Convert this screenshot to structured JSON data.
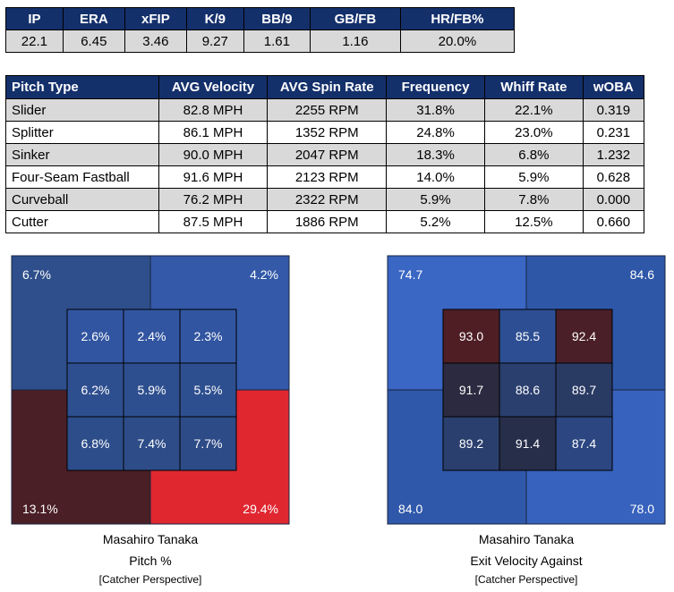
{
  "stats_table": {
    "headers": [
      "IP",
      "ERA",
      "xFIP",
      "K/9",
      "BB/9",
      "GB/FB",
      "HR/FB%"
    ],
    "values": [
      "22.1",
      "6.45",
      "3.46",
      "9.27",
      "1.61",
      "1.16",
      "20.0%"
    ]
  },
  "pitch_table": {
    "headers": [
      "Pitch Type",
      "AVG Velocity",
      "AVG Spin Rate",
      "Frequency",
      "Whiff Rate",
      "wOBA"
    ],
    "rows": [
      [
        "Slider",
        "82.8 MPH",
        "2255 RPM",
        "31.8%",
        "22.1%",
        "0.319"
      ],
      [
        "Splitter",
        "86.1 MPH",
        "1352 RPM",
        "24.8%",
        "23.0%",
        "0.231"
      ],
      [
        "Sinker",
        "90.0 MPH",
        "2047 RPM",
        "18.3%",
        "6.8%",
        "1.232"
      ],
      [
        "Four-Seam Fastball",
        "91.6 MPH",
        "2123 RPM",
        "14.0%",
        "5.9%",
        "0.628"
      ],
      [
        "Curveball",
        "76.2 MPH",
        "2322 RPM",
        "5.9%",
        "7.8%",
        "0.000"
      ],
      [
        "Cutter",
        "87.5 MPH",
        "1886 RPM",
        "5.2%",
        "12.5%",
        "0.660"
      ]
    ]
  },
  "chart_data": [
    {
      "type": "heatmap",
      "title": "Masahiro Tanaka",
      "subtitle": "Pitch %",
      "note": "[Catcher Perspective]",
      "outer": {
        "top_left": {
          "label": "6.7%",
          "color": "#2e4f8c"
        },
        "top_right": {
          "label": "4.2%",
          "color": "#3359a8"
        },
        "bottom_left": {
          "label": "13.1%",
          "color": "#4a1f25"
        },
        "bottom_right": {
          "label": "29.4%",
          "color": "#e02730"
        }
      },
      "inner": [
        [
          {
            "label": "2.6%",
            "color": "#3155a0"
          },
          {
            "label": "2.4%",
            "color": "#3155a0"
          },
          {
            "label": "2.3%",
            "color": "#3155a0"
          }
        ],
        [
          {
            "label": "6.2%",
            "color": "#2e4f8f"
          },
          {
            "label": "5.9%",
            "color": "#2e4f8f"
          },
          {
            "label": "5.5%",
            "color": "#2e4f8f"
          }
        ],
        [
          {
            "label": "6.8%",
            "color": "#2d4d8a"
          },
          {
            "label": "7.4%",
            "color": "#2d4c88"
          },
          {
            "label": "7.7%",
            "color": "#2d4b86"
          }
        ]
      ]
    },
    {
      "type": "heatmap",
      "title": "Masahiro Tanaka",
      "subtitle": "Exit Velocity Against",
      "note": "[Catcher Perspective]",
      "outer": {
        "top_left": {
          "label": "74.7",
          "color": "#3a66c4"
        },
        "top_right": {
          "label": "84.6",
          "color": "#2e57a8"
        },
        "bottom_left": {
          "label": "84.0",
          "color": "#2f58aa"
        },
        "bottom_right": {
          "label": "78.0",
          "color": "#3762bd"
        }
      },
      "inner": [
        [
          {
            "label": "93.0",
            "color": "#4f1e25"
          },
          {
            "label": "85.5",
            "color": "#2d4e92"
          },
          {
            "label": "92.4",
            "color": "#4a1f27"
          }
        ],
        [
          {
            "label": "91.7",
            "color": "#2b2a40"
          },
          {
            "label": "88.6",
            "color": "#2a3f6e"
          },
          {
            "label": "89.7",
            "color": "#293a63"
          }
        ],
        [
          {
            "label": "89.2",
            "color": "#2a3f6d"
          },
          {
            "label": "91.4",
            "color": "#272e4a"
          },
          {
            "label": "87.4",
            "color": "#2b4680"
          }
        ]
      ]
    }
  ]
}
